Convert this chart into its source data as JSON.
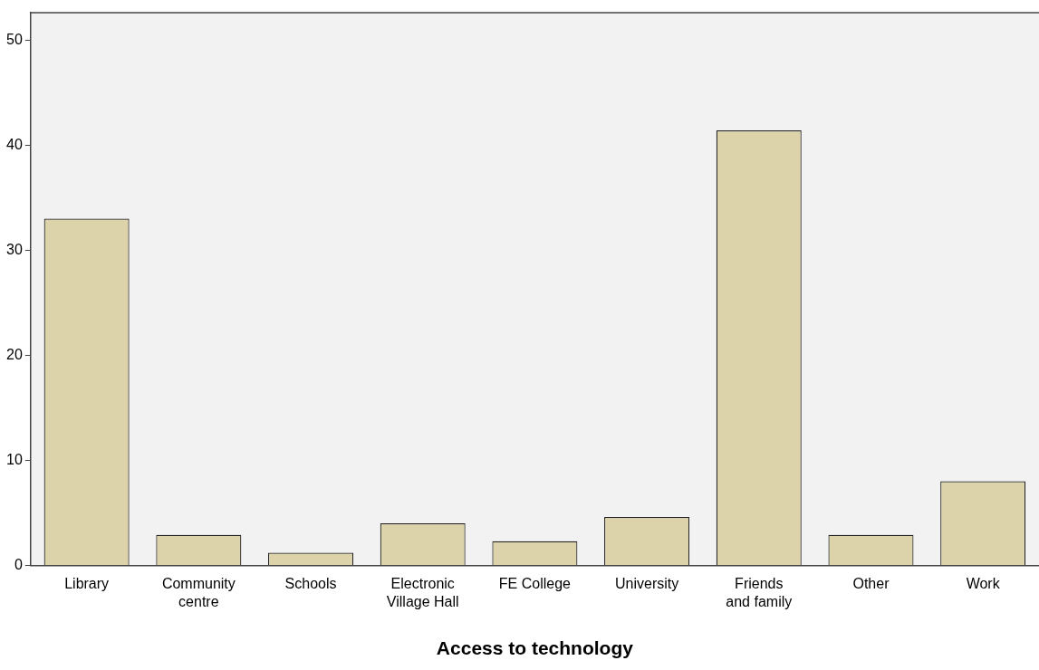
{
  "chart_data": {
    "type": "bar",
    "xlabel": "Access to technology",
    "categories": [
      "Library",
      "Community\ncentre",
      "Schools",
      "Electronic\nVillage Hall",
      "FE College",
      "University",
      "Friends\nand family",
      "Other",
      "Work"
    ],
    "values": [
      33.0,
      2.9,
      1.2,
      4.0,
      2.3,
      4.6,
      41.4,
      2.9,
      8.0
    ],
    "color": "#ddd3aa",
    "ylim": [
      0,
      52.6
    ],
    "yticks": [
      0,
      10,
      20,
      30,
      40,
      50
    ],
    "grid": false,
    "legend": false
  }
}
